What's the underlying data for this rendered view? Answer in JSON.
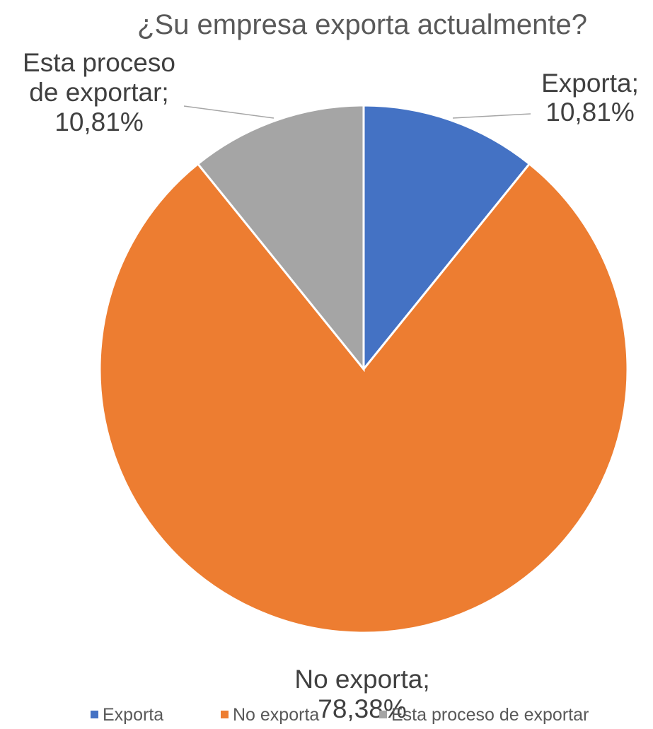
{
  "chart_data": {
    "type": "pie",
    "title": "¿Su empresa exporta actualmente?",
    "categories": [
      "Exporta",
      "No exporta",
      "Esta proceso de exportar"
    ],
    "values": [
      10.81,
      78.38,
      10.81
    ],
    "data_labels": [
      [
        "Exporta;",
        "10,81%"
      ],
      [
        "No exporta;",
        "78,38%"
      ],
      [
        "Esta proceso",
        "de exportar;",
        "10,81%"
      ]
    ],
    "colors": [
      "#4472C4",
      "#ED7D31",
      "#A5A5A5"
    ],
    "legend_position": "bottom"
  }
}
